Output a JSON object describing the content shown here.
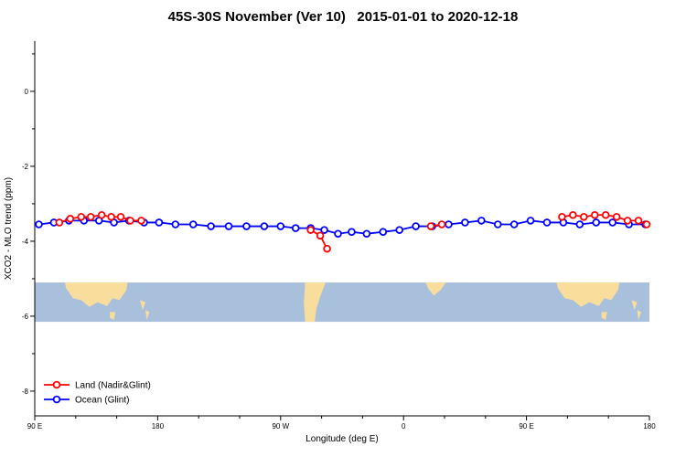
{
  "title": "45S-30S November (Ver 10)   2015-01-01 to 2020-12-18",
  "legend": {
    "items": [
      {
        "label": "Land (Nadir&Glint)",
        "color": "#ff0000"
      },
      {
        "label": "Ocean (Glint)",
        "color": "#0000ff"
      }
    ]
  },
  "chart_data": {
    "type": "line",
    "title": "45S-30S November (Ver 10)   2015-01-01 to 2020-12-18",
    "xlabel": "Longitude (deg E)",
    "ylabel": "XCO2 - MLO trend (ppm)",
    "xlim": [
      90,
      540
    ],
    "ylim": [
      -8.66,
      1.34
    ],
    "x_ticks": [
      {
        "value": 90,
        "label": "90 E"
      },
      {
        "value": 180,
        "label": "180"
      },
      {
        "value": 270,
        "label": "90 W"
      },
      {
        "value": 360,
        "label": "0"
      },
      {
        "value": 450,
        "label": "90 E"
      },
      {
        "value": 540,
        "label": "180"
      }
    ],
    "x_minor_ticks": [
      120,
      150,
      210,
      240,
      300,
      330,
      390,
      420,
      480,
      510
    ],
    "y_ticks": [
      {
        "value": 0,
        "label": "0"
      },
      {
        "value": -2,
        "label": "-2"
      },
      {
        "value": -4,
        "label": "-4"
      },
      {
        "value": -6,
        "label": "-6"
      },
      {
        "value": -8,
        "label": "-8"
      }
    ],
    "y_minor_ticks": [
      1,
      -1,
      -3,
      -5,
      -7
    ],
    "series": [
      {
        "name": "Ocean (Glint)",
        "color": "#0000ff",
        "segments": [
          [
            [
              93,
              -3.55
            ],
            [
              104,
              -3.5
            ],
            [
              115,
              -3.45
            ],
            [
              126,
              -3.45
            ],
            [
              137,
              -3.45
            ],
            [
              148,
              -3.5
            ],
            [
              159,
              -3.45
            ],
            [
              170,
              -3.5
            ],
            [
              181,
              -3.5
            ],
            [
              193,
              -3.55
            ],
            [
              206,
              -3.55
            ],
            [
              219,
              -3.6
            ],
            [
              232,
              -3.6
            ],
            [
              245,
              -3.6
            ],
            [
              258,
              -3.6
            ],
            [
              270,
              -3.6
            ],
            [
              281,
              -3.65
            ],
            [
              292,
              -3.65
            ],
            [
              302,
              -3.7
            ],
            [
              312,
              -3.8
            ],
            [
              322,
              -3.75
            ],
            [
              333,
              -3.8
            ],
            [
              345,
              -3.75
            ],
            [
              357,
              -3.7
            ],
            [
              369,
              -3.6
            ],
            [
              381,
              -3.6
            ],
            [
              393,
              -3.55
            ],
            [
              405,
              -3.5
            ],
            [
              417,
              -3.45
            ],
            [
              429,
              -3.55
            ],
            [
              441,
              -3.55
            ],
            [
              453,
              -3.45
            ],
            [
              465,
              -3.5
            ],
            [
              477,
              -3.5
            ],
            [
              489,
              -3.55
            ],
            [
              501,
              -3.5
            ],
            [
              513,
              -3.5
            ],
            [
              525,
              -3.55
            ],
            [
              537,
              -3.55
            ]
          ]
        ]
      },
      {
        "name": "Land (Nadir&Glint)",
        "color": "#ff0000",
        "segments": [
          [
            [
              108,
              -3.5
            ],
            [
              116,
              -3.4
            ],
            [
              124,
              -3.35
            ],
            [
              131,
              -3.35
            ],
            [
              139,
              -3.3
            ],
            [
              146,
              -3.35
            ],
            [
              153,
              -3.35
            ],
            [
              160,
              -3.45
            ],
            [
              168,
              -3.45
            ]
          ],
          [
            [
              292,
              -3.7
            ],
            [
              299,
              -3.85
            ],
            [
              304,
              -4.2
            ]
          ],
          [
            [
              380,
              -3.6
            ],
            [
              388,
              -3.55
            ]
          ],
          [
            [
              476,
              -3.35
            ],
            [
              484,
              -3.3
            ],
            [
              492,
              -3.35
            ],
            [
              500,
              -3.3
            ],
            [
              508,
              -3.3
            ],
            [
              516,
              -3.35
            ],
            [
              524,
              -3.45
            ],
            [
              532,
              -3.45
            ],
            [
              538,
              -3.55
            ]
          ]
        ]
      }
    ],
    "map_band": {
      "y_top": -5.1,
      "y_bottom": -6.15,
      "ocean_color": "#a9c0dc",
      "land_color": "#f9dd9c",
      "land_shapes": [
        {
          "name": "australia-west",
          "pts": [
            [
              112,
              0
            ],
            [
              158,
              0
            ],
            [
              157,
              0.2
            ],
            [
              152,
              0.45
            ],
            [
              147,
              0.4
            ],
            [
              143,
              0.6
            ],
            [
              136,
              0.5
            ],
            [
              130,
              0.62
            ],
            [
              124,
              0.45
            ],
            [
              118,
              0.4
            ],
            [
              113,
              0.15
            ]
          ]
        },
        {
          "name": "tasmania-west",
          "pts": [
            [
              145,
              0.75
            ],
            [
              149,
              0.75
            ],
            [
              148,
              0.95
            ],
            [
              145,
              0.9
            ]
          ]
        },
        {
          "name": "new-zealand-north-west",
          "pts": [
            [
              167,
              0.45
            ],
            [
              171,
              0.5
            ],
            [
              169,
              0.7
            ]
          ]
        },
        {
          "name": "new-zealand-south-west",
          "pts": [
            [
              171,
              0.7
            ],
            [
              174,
              0.75
            ],
            [
              172,
              0.95
            ]
          ]
        },
        {
          "name": "south-america",
          "pts": [
            [
              288,
              0
            ],
            [
              303,
              0
            ],
            [
              299,
              0.35
            ],
            [
              296,
              0.7
            ],
            [
              295,
              1
            ],
            [
              288,
              1
            ],
            [
              287,
              0.5
            ]
          ]
        },
        {
          "name": "africa",
          "pts": [
            [
              376,
              0
            ],
            [
              391,
              0
            ],
            [
              387,
              0.2
            ],
            [
              382,
              0.33
            ],
            [
              378,
              0.15
            ]
          ]
        },
        {
          "name": "australia-east",
          "pts": [
            [
              472,
              0
            ],
            [
              518,
              0
            ],
            [
              517,
              0.2
            ],
            [
              512,
              0.45
            ],
            [
              507,
              0.4
            ],
            [
              503,
              0.6
            ],
            [
              496,
              0.5
            ],
            [
              490,
              0.62
            ],
            [
              484,
              0.45
            ],
            [
              478,
              0.4
            ],
            [
              473,
              0.15
            ]
          ]
        },
        {
          "name": "tasmania-east",
          "pts": [
            [
              505,
              0.75
            ],
            [
              509,
              0.75
            ],
            [
              508,
              0.95
            ],
            [
              505,
              0.9
            ]
          ]
        },
        {
          "name": "new-zealand-north-east",
          "pts": [
            [
              527,
              0.45
            ],
            [
              531,
              0.5
            ],
            [
              529,
              0.7
            ]
          ]
        },
        {
          "name": "new-zealand-south-east",
          "pts": [
            [
              531,
              0.7
            ],
            [
              534,
              0.75
            ],
            [
              532,
              0.95
            ]
          ]
        }
      ]
    }
  }
}
